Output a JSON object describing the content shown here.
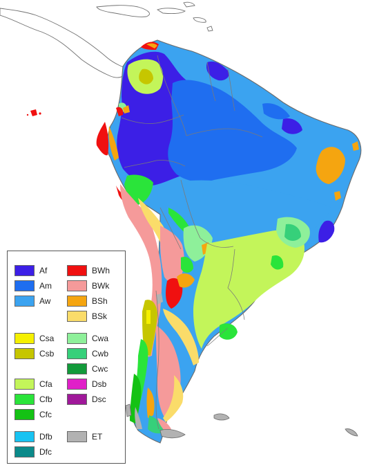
{
  "map": {
    "colors": {
      "ocean": "#ffffff",
      "border": "#7a7a7a",
      "coast": "#6a6a6a"
    }
  },
  "legend": {
    "items": [
      {
        "code": "Af",
        "color": "#3c1fe6"
      },
      {
        "code": "Am",
        "color": "#1f6ef0"
      },
      {
        "code": "Aw",
        "color": "#3ba3f0"
      },
      {
        "code": "Csa",
        "color": "#f5f000"
      },
      {
        "code": "Csb",
        "color": "#c6c600"
      },
      {
        "code": "Cfa",
        "color": "#c3f55a"
      },
      {
        "code": "Cfb",
        "color": "#2ae43a"
      },
      {
        "code": "Cfc",
        "color": "#14c214"
      },
      {
        "code": "Dfb",
        "color": "#17c3f2"
      },
      {
        "code": "Dfc",
        "color": "#0b8a8a"
      },
      {
        "code": "BWh",
        "color": "#f01010"
      },
      {
        "code": "BWk",
        "color": "#f59a9a"
      },
      {
        "code": "BSh",
        "color": "#f5a510"
      },
      {
        "code": "BSk",
        "color": "#fadc6a"
      },
      {
        "code": "Cwa",
        "color": "#8ef09a"
      },
      {
        "code": "Cwb",
        "color": "#36d07a"
      },
      {
        "code": "Cwc",
        "color": "#129a3a"
      },
      {
        "code": "Dsb",
        "color": "#e020c8"
      },
      {
        "code": "Dsc",
        "color": "#a0189a"
      },
      {
        "code": "ET",
        "color": "#b2b2b2"
      }
    ]
  }
}
